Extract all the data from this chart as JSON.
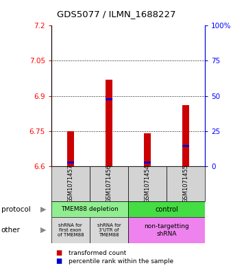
{
  "title": "GDS5077 / ILMN_1688227",
  "samples": [
    "GSM1071457",
    "GSM1071456",
    "GSM1071454",
    "GSM1071455"
  ],
  "red_values": [
    6.75,
    6.97,
    6.74,
    6.86
  ],
  "blue_values": [
    6.615,
    6.885,
    6.615,
    6.685
  ],
  "ymin": 6.6,
  "ymax": 7.2,
  "yticks_left": [
    6.6,
    6.75,
    6.9,
    7.05,
    7.2
  ],
  "yticks_right": [
    0,
    25,
    50,
    75,
    100
  ],
  "protocol_labels": [
    "TMEM88 depletion",
    "control"
  ],
  "other_labels_left1": "shRNA for\nfirst exon\nof TMEM88",
  "other_labels_left2": "shRNA for\n3'UTR of\nTMEM88",
  "other_labels_right": "non-targetting\nshRNA",
  "protocol_color_left": "#90EE90",
  "protocol_color_right": "#44DD44",
  "other_color_gray": "#D8D8D8",
  "other_color_purple": "#EE82EE",
  "legend_red": "transformed count",
  "legend_blue": "percentile rank within the sample",
  "bar_color": "#CC0000",
  "marker_color": "#0000CC",
  "label_protocol": "protocol",
  "label_other": "other"
}
